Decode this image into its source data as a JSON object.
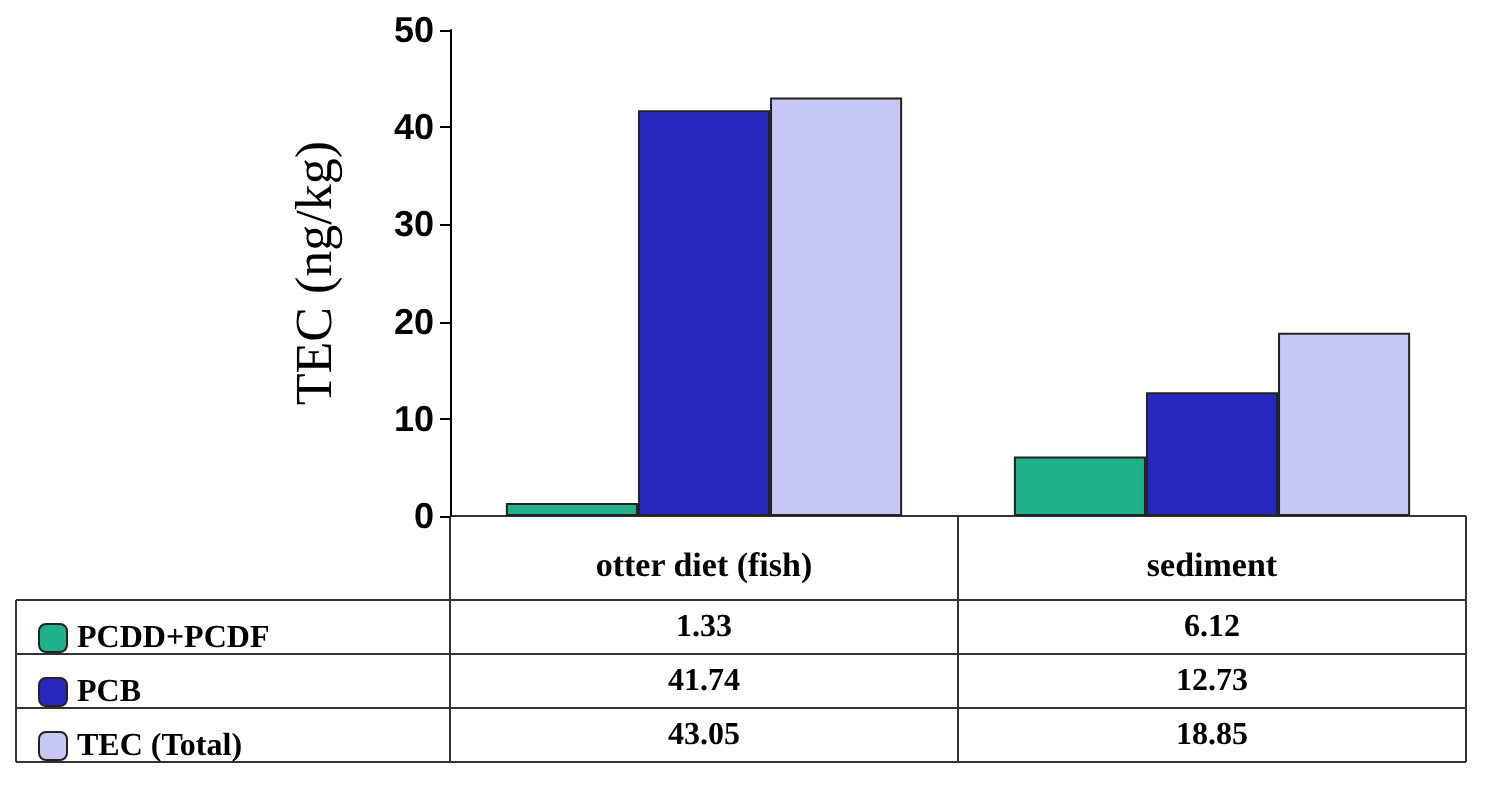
{
  "chart_data": {
    "type": "bar",
    "ylabel": "TEC (ng/kg)",
    "categories": [
      "otter diet (fish)",
      "sediment"
    ],
    "series": [
      {
        "name": "PCDD+PCDF",
        "color": "#20b08a",
        "values": [
          1.33,
          6.12
        ]
      },
      {
        "name": "PCB",
        "color": "#2828c0",
        "values": [
          41.74,
          12.73
        ]
      },
      {
        "name": "TEC (Total)",
        "color": "#c8c8f4",
        "values": [
          43.05,
          18.85
        ]
      }
    ],
    "ylim": [
      0,
      50
    ],
    "yticks": [
      0,
      10,
      20,
      30,
      40,
      50
    ],
    "grid": false,
    "legend": "bottom left",
    "data_labels": true
  }
}
